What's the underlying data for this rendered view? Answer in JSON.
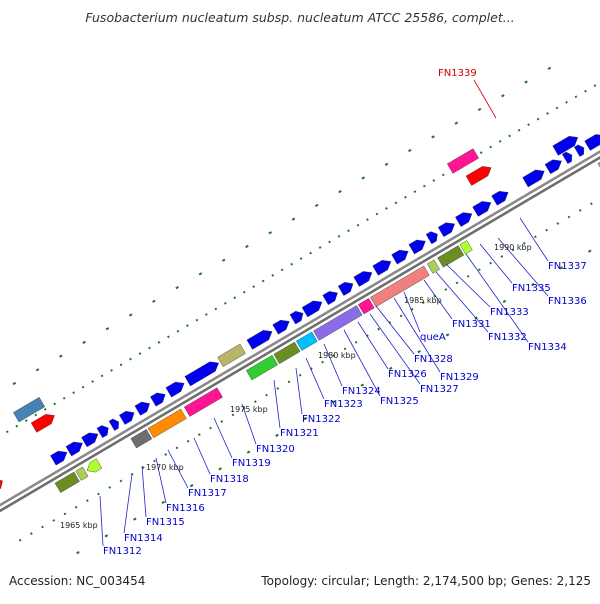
{
  "header": {
    "title": "Fusobacterium nucleatum subsp. nucleatum ATCC 25586, complet..."
  },
  "footer": {
    "accession": "Accession: NC_003454",
    "summary": "Topology: circular; Length: 2,174,500 bp; Genes: 2,125"
  },
  "scale_labels": [
    "1965 kbp",
    "1970 kbp",
    "1975 kbp",
    "1980 kbp",
    "1985 kbp",
    "1990 kbp"
  ],
  "gene_labels": [
    "FN1312",
    "FN1314",
    "FN1315",
    "FN1316",
    "FN1317",
    "FN1318",
    "FN1319",
    "FN1320",
    "FN1321",
    "FN1322",
    "FN1323",
    "FN1324",
    "FN1325",
    "FN1326",
    "FN1327",
    "FN1328",
    "FN1329",
    "queA",
    "FN1331",
    "FN1332",
    "FN1333",
    "FN1334",
    "FN1335",
    "FN1336",
    "FN1337"
  ],
  "highlight_label": "FN1339",
  "colors": {
    "forward_gene": "#0000ee",
    "label_blue": "#0000cc",
    "label_red": "#cc0000",
    "backbone": "#7f7f7f",
    "tick": "#1e7a1e"
  }
}
